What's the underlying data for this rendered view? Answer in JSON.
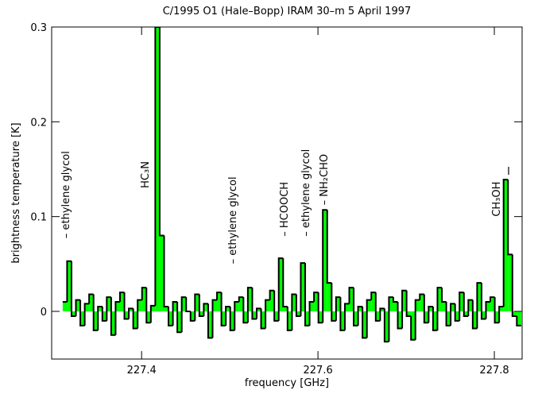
{
  "chart_data": {
    "type": "spectrum",
    "title": "C/1995 O1 (Hale–Bopp)     IRAM 30–m     5 April 1997",
    "x_label": "frequency [GHz]",
    "y_label": "brightness temperature [K]",
    "line_color": "#000000",
    "fill_color": "#00ff00",
    "xlim": [
      227.298,
      227.8315
    ],
    "ylim": [
      -0.0503,
      0.3
    ],
    "xticks": [
      227.4,
      227.6,
      227.8
    ],
    "yticks": [
      0,
      0.1,
      0.2,
      0.3
    ],
    "x": [
      227.313,
      227.318,
      227.323,
      227.328,
      227.333,
      227.338,
      227.343,
      227.348,
      227.353,
      227.358,
      227.363,
      227.368,
      227.373,
      227.378,
      227.383,
      227.388,
      227.393,
      227.398,
      227.403,
      227.408,
      227.413,
      227.418,
      227.423,
      227.428,
      227.433,
      227.438,
      227.443,
      227.448,
      227.453,
      227.458,
      227.463,
      227.468,
      227.473,
      227.478,
      227.483,
      227.488,
      227.493,
      227.498,
      227.503,
      227.508,
      227.513,
      227.518,
      227.523,
      227.528,
      227.533,
      227.538,
      227.543,
      227.548,
      227.553,
      227.558,
      227.563,
      227.568,
      227.573,
      227.578,
      227.583,
      227.588,
      227.593,
      227.598,
      227.603,
      227.608,
      227.613,
      227.618,
      227.623,
      227.628,
      227.633,
      227.638,
      227.643,
      227.648,
      227.653,
      227.658,
      227.663,
      227.668,
      227.673,
      227.678,
      227.683,
      227.688,
      227.693,
      227.698,
      227.703,
      227.708,
      227.713,
      227.718,
      227.723,
      227.728,
      227.733,
      227.738,
      227.743,
      227.748,
      227.753,
      227.758,
      227.763,
      227.768,
      227.773,
      227.778,
      227.783,
      227.788,
      227.793,
      227.798,
      227.803,
      227.808,
      227.813,
      227.818,
      227.823,
      227.828
    ],
    "values": [
      0.01,
      0.053,
      -0.005,
      0.012,
      -0.015,
      0.008,
      0.018,
      -0.02,
      0.005,
      -0.01,
      0.015,
      -0.025,
      0.01,
      0.02,
      -0.008,
      0.003,
      -0.018,
      0.012,
      0.025,
      -0.012,
      0.006,
      0.3,
      0.08,
      0.005,
      -0.015,
      0.01,
      -0.022,
      0.015,
      0.0,
      -0.01,
      0.018,
      -0.005,
      0.008,
      -0.028,
      0.012,
      0.02,
      -0.015,
      0.005,
      -0.02,
      0.01,
      0.015,
      -0.012,
      0.025,
      -0.008,
      0.003,
      -0.018,
      0.012,
      0.022,
      -0.01,
      0.056,
      0.005,
      -0.02,
      0.018,
      -0.005,
      0.051,
      -0.015,
      0.01,
      0.02,
      -0.012,
      0.107,
      0.03,
      -0.01,
      0.015,
      -0.02,
      0.008,
      0.025,
      -0.015,
      0.005,
      -0.028,
      0.012,
      0.02,
      -0.01,
      0.003,
      -0.032,
      0.015,
      0.01,
      -0.018,
      0.022,
      -0.005,
      -0.03,
      0.012,
      0.018,
      -0.012,
      0.005,
      -0.02,
      0.025,
      0.01,
      -0.015,
      0.008,
      -0.01,
      0.02,
      -0.005,
      0.012,
      -0.018,
      0.03,
      -0.008,
      0.01,
      0.015,
      -0.012,
      0.005,
      0.139,
      0.06,
      -0.005,
      -0.015
    ],
    "annotations": [
      {
        "text": "– ethylene glycol",
        "x": 227.3144,
        "y": 0.077,
        "color": "#e00000"
      },
      {
        "text": "HC₃N",
        "x": 227.4045,
        "y": 0.13,
        "color": "#000000"
      },
      {
        "text": "– ethylene glycol",
        "x": 227.5036,
        "y": 0.05,
        "color": "#e00000"
      },
      {
        "text": "– HCOOCH",
        "x": 227.5622,
        "y": 0.079,
        "color": "#000000"
      },
      {
        "text": "– ethylene glycol",
        "x": 227.5865,
        "y": 0.079,
        "color": "#e00000"
      },
      {
        "text": "– NH₂CHO",
        "x": 227.6072,
        "y": 0.112,
        "color": "#000000"
      },
      {
        "text": "CH₃OH",
        "x": 227.8027,
        "y": 0.1,
        "color": "#000000"
      }
    ]
  }
}
